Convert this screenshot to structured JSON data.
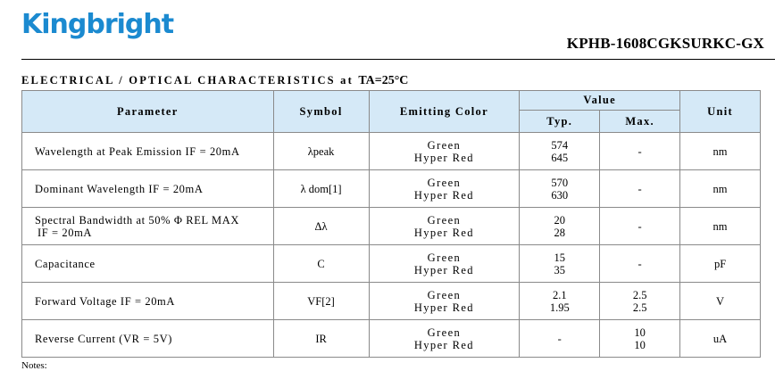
{
  "header": {
    "logo": "Kingbright",
    "part_number": "KPHB-1608CGKSURKC-GX"
  },
  "section_title": "ELECTRICAL / OPTICAL CHARACTERISTICS at",
  "section_condition": "TA=25°C",
  "table": {
    "headers": {
      "parameter": "Parameter",
      "symbol": "Symbol",
      "emitting_color": "Emitting Color",
      "value": "Value",
      "typ": "Typ.",
      "max": "Max.",
      "unit": "Unit"
    },
    "rows": [
      {
        "parameter": "Wavelength at Peak Emission IF = 20mA",
        "symbol": "λpeak",
        "color1": "Green",
        "color2": "Hyper Red",
        "typ1": "574",
        "typ2": "645",
        "max1": "-",
        "max2": "",
        "unit": "nm"
      },
      {
        "parameter": "Dominant Wavelength IF = 20mA",
        "symbol": "λ dom[1]",
        "color1": "Green",
        "color2": "Hyper Red",
        "typ1": "570",
        "typ2": "630",
        "max1": "-",
        "max2": "",
        "unit": "nm"
      },
      {
        "parameter": "Spectral Bandwidth at 50% Φ REL MAX",
        "parameter2": "IF = 20mA",
        "symbol": "Δλ",
        "color1": "Green",
        "color2": "Hyper Red",
        "typ1": "20",
        "typ2": "28",
        "max1": "-",
        "max2": "",
        "unit": "nm"
      },
      {
        "parameter": "Capacitance",
        "symbol": "C",
        "color1": "Green",
        "color2": "Hyper Red",
        "typ1": "15",
        "typ2": "35",
        "max1": "-",
        "max2": "",
        "unit": "pF"
      },
      {
        "parameter": "Forward Voltage IF = 20mA",
        "symbol": "VF[2]",
        "color1": "Green",
        "color2": "Hyper Red",
        "typ1": "2.1",
        "typ2": "1.95",
        "max1": "2.5",
        "max2": "2.5",
        "unit": "V"
      },
      {
        "parameter": "Reverse Current (VR = 5V)",
        "symbol": "IR",
        "color1": "Green",
        "color2": "Hyper Red",
        "typ1": "-",
        "typ2": "",
        "max1": "10",
        "max2": "10",
        "unit": "uA"
      }
    ]
  },
  "notes_label": "Notes:"
}
